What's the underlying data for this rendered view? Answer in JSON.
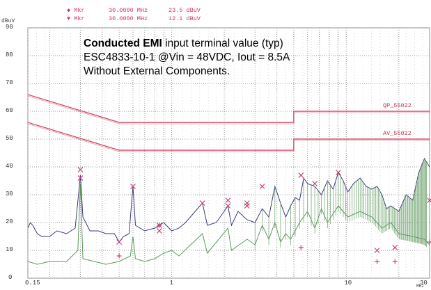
{
  "markers": [
    {
      "symbol": "◆",
      "label": "Mkr",
      "freq": "30.0000 MHz",
      "level": "23.5 dBuV"
    },
    {
      "symbol": "▼",
      "label": "Mkr",
      "freq": "30.0000 MHz",
      "level": "12.1 dBuV"
    }
  ],
  "annotation": {
    "title_bold": "Conducted EMI",
    "title_rest": " input terminal value (typ)",
    "line2": "ESC4833-10-1 @Vin = 48VDC, Iout = 8.5A",
    "line3": "Without External Components."
  },
  "chart_data": {
    "type": "line",
    "ylabel": "dBuV",
    "x_unit": "MHz",
    "x_scale": "log",
    "xlim": [
      0.15,
      30
    ],
    "ylim": [
      0,
      90
    ],
    "grid": true,
    "y_ticks": [
      0,
      10,
      20,
      30,
      40,
      50,
      60,
      70,
      80,
      90
    ],
    "x_tick_labels": [
      {
        "value": 0.15,
        "label": "0.15"
      },
      {
        "value": 1,
        "label": "1"
      },
      {
        "value": 10,
        "label": "10"
      },
      {
        "value": 30,
        "label": "30"
      }
    ],
    "limit_lines": [
      {
        "name": "QP_55022",
        "color": "#d2506a",
        "points": [
          [
            0.15,
            66
          ],
          [
            0.5,
            56
          ],
          [
            5,
            56
          ],
          [
            5,
            60
          ],
          [
            30,
            60
          ]
        ]
      },
      {
        "name": "AV_55022",
        "color": "#d2506a",
        "points": [
          [
            0.15,
            56
          ],
          [
            0.5,
            46
          ],
          [
            5,
            46
          ],
          [
            5,
            50
          ],
          [
            30,
            50
          ]
        ]
      }
    ],
    "peak_series": {
      "name": "",
      "color": "#3a3a7a"
    },
    "average_series": {
      "name": "",
      "color": "#5a9a5a"
    },
    "peak_points": [
      [
        0.15,
        18
      ],
      [
        0.155,
        20
      ],
      [
        0.16,
        19
      ],
      [
        0.17,
        16
      ],
      [
        0.18,
        15
      ],
      [
        0.2,
        15
      ],
      [
        0.22,
        17
      ],
      [
        0.25,
        16
      ],
      [
        0.28,
        18
      ],
      [
        0.3,
        37
      ],
      [
        0.31,
        22
      ],
      [
        0.34,
        17
      ],
      [
        0.38,
        17
      ],
      [
        0.42,
        16
      ],
      [
        0.47,
        16
      ],
      [
        0.5,
        13
      ],
      [
        0.53,
        15
      ],
      [
        0.57,
        16
      ],
      [
        0.6,
        33
      ],
      [
        0.62,
        19
      ],
      [
        0.7,
        17
      ],
      [
        0.8,
        18
      ],
      [
        0.9,
        20
      ],
      [
        1.0,
        17
      ],
      [
        1.1,
        18
      ],
      [
        1.2,
        20
      ],
      [
        1.5,
        27
      ],
      [
        1.6,
        19
      ],
      [
        1.8,
        20
      ],
      [
        2.1,
        26
      ],
      [
        2.2,
        19
      ],
      [
        2.4,
        24
      ],
      [
        2.7,
        21
      ],
      [
        3.0,
        20
      ],
      [
        3.3,
        25
      ],
      [
        3.6,
        22
      ],
      [
        3.9,
        33
      ],
      [
        4.2,
        27
      ],
      [
        4.5,
        22
      ],
      [
        4.8,
        26
      ],
      [
        5.1,
        29
      ],
      [
        5.4,
        28
      ],
      [
        5.7,
        36
      ],
      [
        6.0,
        34
      ],
      [
        6.6,
        33
      ],
      [
        7.2,
        30
      ],
      [
        7.8,
        35
      ],
      [
        8.4,
        32
      ],
      [
        9.0,
        38
      ],
      [
        9.6,
        35
      ],
      [
        10.2,
        31
      ],
      [
        11,
        34
      ],
      [
        12,
        36
      ],
      [
        13,
        33
      ],
      [
        14,
        32
      ],
      [
        15,
        33
      ],
      [
        16,
        30
      ],
      [
        17,
        25
      ],
      [
        18,
        26
      ],
      [
        20,
        24
      ],
      [
        22,
        30
      ],
      [
        24,
        28
      ],
      [
        26,
        38
      ],
      [
        28,
        43
      ],
      [
        30,
        40
      ]
    ],
    "avg_points": [
      [
        0.15,
        6
      ],
      [
        0.17,
        5
      ],
      [
        0.2,
        6
      ],
      [
        0.25,
        6
      ],
      [
        0.29,
        10
      ],
      [
        0.3,
        34
      ],
      [
        0.31,
        7
      ],
      [
        0.36,
        6
      ],
      [
        0.42,
        5
      ],
      [
        0.5,
        6
      ],
      [
        0.58,
        8
      ],
      [
        0.6,
        15
      ],
      [
        0.62,
        7
      ],
      [
        0.7,
        6
      ],
      [
        0.8,
        7
      ],
      [
        0.9,
        9
      ],
      [
        1.0,
        10
      ],
      [
        1.1,
        8
      ],
      [
        1.5,
        16
      ],
      [
        1.6,
        9
      ],
      [
        2.1,
        18
      ],
      [
        2.2,
        10
      ],
      [
        2.7,
        14
      ],
      [
        3.0,
        12
      ],
      [
        3.3,
        19
      ],
      [
        3.6,
        14
      ],
      [
        3.9,
        20
      ],
      [
        4.2,
        13
      ],
      [
        4.5,
        16
      ],
      [
        4.8,
        14
      ],
      [
        5.4,
        20
      ],
      [
        6.0,
        24
      ],
      [
        6.6,
        18
      ],
      [
        7.2,
        25
      ],
      [
        7.8,
        20
      ],
      [
        9.0,
        26
      ],
      [
        10.2,
        22
      ],
      [
        12,
        24
      ],
      [
        14,
        22
      ],
      [
        16,
        18
      ],
      [
        18,
        20
      ],
      [
        20,
        16
      ],
      [
        24,
        15
      ],
      [
        28,
        14
      ],
      [
        30,
        12
      ]
    ],
    "qp_marks": [
      [
        0.3,
        39
      ],
      [
        0.3,
        36
      ],
      [
        0.5,
        13
      ],
      [
        0.6,
        33
      ],
      [
        0.85,
        19
      ],
      [
        0.85,
        17
      ],
      [
        1.5,
        27
      ],
      [
        2.1,
        28
      ],
      [
        2.1,
        26
      ],
      [
        2.7,
        27
      ],
      [
        2.7,
        26
      ],
      [
        3.3,
        33
      ],
      [
        5.5,
        37
      ],
      [
        6.6,
        34
      ],
      [
        9.0,
        38
      ],
      [
        15,
        10
      ],
      [
        19,
        11
      ],
      [
        30,
        28
      ]
    ],
    "av_marks": [
      [
        0.5,
        8
      ],
      [
        0.85,
        19
      ],
      [
        5.5,
        11
      ],
      [
        15,
        6
      ],
      [
        19,
        6
      ],
      [
        30,
        13
      ]
    ]
  }
}
